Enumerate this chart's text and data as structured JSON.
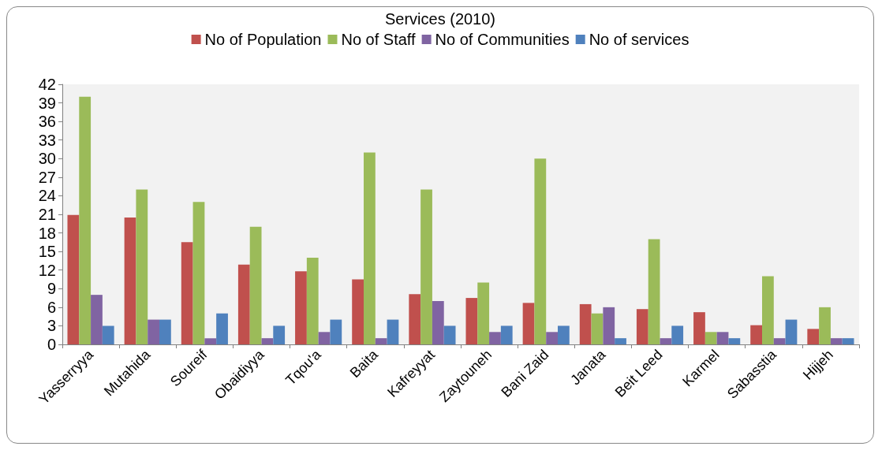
{
  "chart_data": {
    "type": "bar",
    "title": "Services (2010)",
    "categories": [
      "Yasserryya",
      "Mutahida",
      "Soureif",
      "Obaidiyya",
      "Tqou'a",
      "Baita",
      "Kafreyyat",
      "Zaytouneh",
      "Bani Zaid",
      "Janata",
      "Beit Leed",
      "Karmel",
      "Sabasstia",
      "Hijjeh"
    ],
    "series": [
      {
        "name": "No of Population",
        "color": "#c0504d",
        "values": [
          20.9,
          20.5,
          16.5,
          12.9,
          11.8,
          10.5,
          8.1,
          7.5,
          6.7,
          6.5,
          5.7,
          5.2,
          3.1,
          2.5
        ]
      },
      {
        "name": "No of Staff",
        "color": "#9bbb59",
        "values": [
          40,
          25,
          23,
          19,
          14,
          31,
          25,
          10,
          30,
          5,
          17,
          2,
          11,
          6
        ]
      },
      {
        "name": "No of Communities",
        "color": "#8064a2",
        "values": [
          8,
          4,
          1,
          1,
          2,
          1,
          7,
          2,
          2,
          6,
          1,
          2,
          1,
          1
        ]
      },
      {
        "name": "No of services",
        "color": "#4f81bd",
        "values": [
          3,
          4,
          5,
          3,
          4,
          4,
          3,
          3,
          3,
          1,
          3,
          1,
          4,
          1
        ]
      }
    ],
    "ylim": [
      0,
      42
    ],
    "yticks": [
      0,
      3,
      6,
      9,
      12,
      15,
      18,
      21,
      24,
      27,
      30,
      33,
      36,
      39,
      42
    ],
    "grid": false,
    "legend": "top"
  }
}
